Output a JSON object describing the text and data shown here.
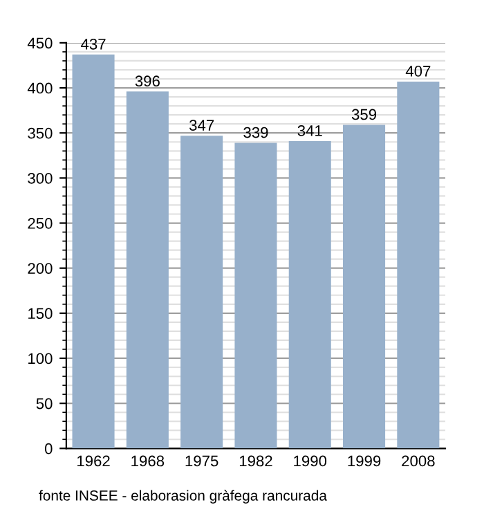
{
  "chart_data": {
    "type": "bar",
    "categories": [
      "1962",
      "1968",
      "1975",
      "1982",
      "1990",
      "1999",
      "2008"
    ],
    "values": [
      437,
      396,
      347,
      339,
      341,
      359,
      407
    ],
    "color": "#97b0cb",
    "ylim": [
      0,
      450
    ],
    "yticks": [
      0,
      50,
      100,
      150,
      200,
      250,
      300,
      350,
      400,
      450
    ],
    "grid": "y",
    "data_labels": true,
    "annotations": [
      "fonte INSEE - elaborasion gràfega rancurada"
    ]
  }
}
